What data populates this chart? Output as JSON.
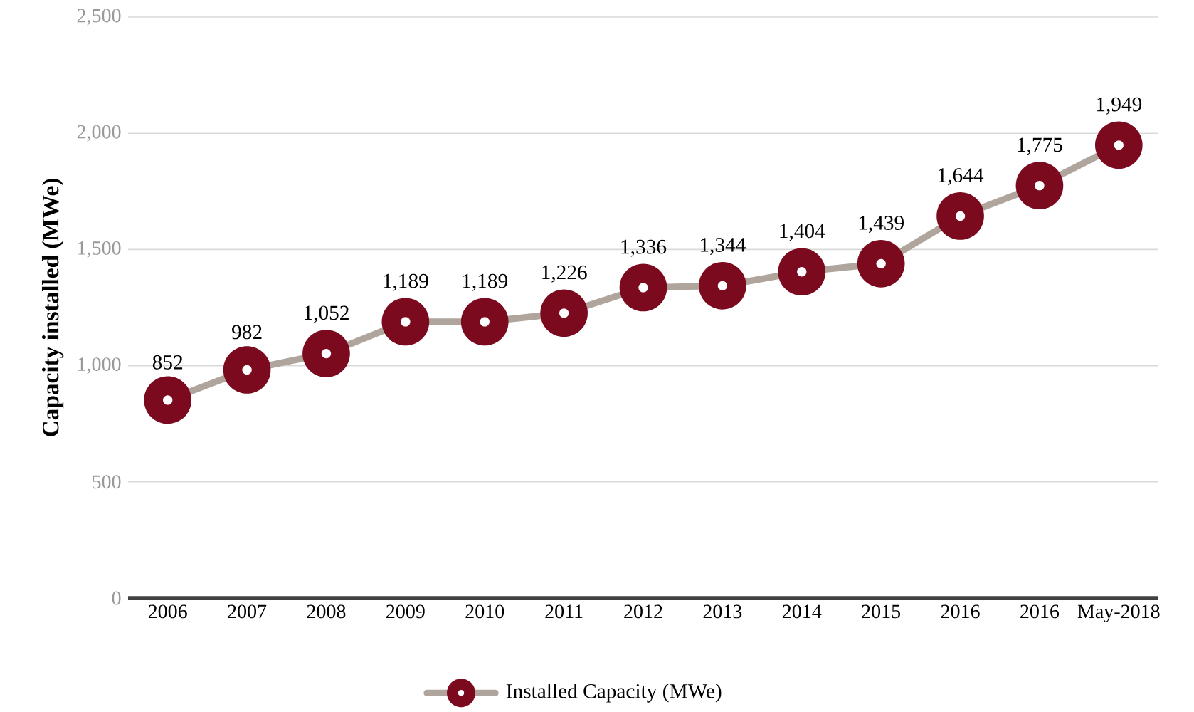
{
  "chart_data": {
    "type": "line",
    "ylabel": "Capacity installed (MWe)",
    "categories": [
      "2006",
      "2007",
      "2008",
      "2009",
      "2010",
      "2011",
      "2012",
      "2013",
      "2014",
      "2015",
      "2016",
      "2016",
      "May-2018"
    ],
    "series": [
      {
        "name": "Installed Capacity (MWe)",
        "color": "#b0a59d",
        "colors": [
          "#7b0a1f",
          "#7b0a1f",
          "#7b0a1f",
          "#7b0a1f",
          "#7b0a1f",
          "#7b0a1f",
          "#7b0a1f",
          "#7b0a1f",
          "#7b0a1f",
          "#7b0a1f",
          "#7b0a1f",
          "#7b0a1f",
          "#7b0a1f"
        ],
        "values": [
          852,
          982,
          1052,
          1189,
          1189,
          1226,
          1336,
          1344,
          1404,
          1439,
          1644,
          1775,
          1949
        ],
        "value_labels": [
          "852",
          "982",
          "1,052",
          "1,189",
          "1,189",
          "1,226",
          "1,336",
          "1,344",
          "1,404",
          "1,439",
          "1,644",
          "1,775",
          "1,949"
        ]
      }
    ],
    "ylim": [
      0,
      2500
    ],
    "yticks": [
      {
        "value": 0,
        "label": "0"
      },
      {
        "value": 500,
        "label": "500"
      },
      {
        "value": 1000,
        "label": "1,000"
      },
      {
        "value": 1500,
        "label": "1,500"
      },
      {
        "value": 2000,
        "label": "2,000"
      },
      {
        "value": 2500,
        "label": "2,500"
      }
    ],
    "grid": "y",
    "legend": "bottom",
    "marker": "circle",
    "line_style": "solid"
  }
}
